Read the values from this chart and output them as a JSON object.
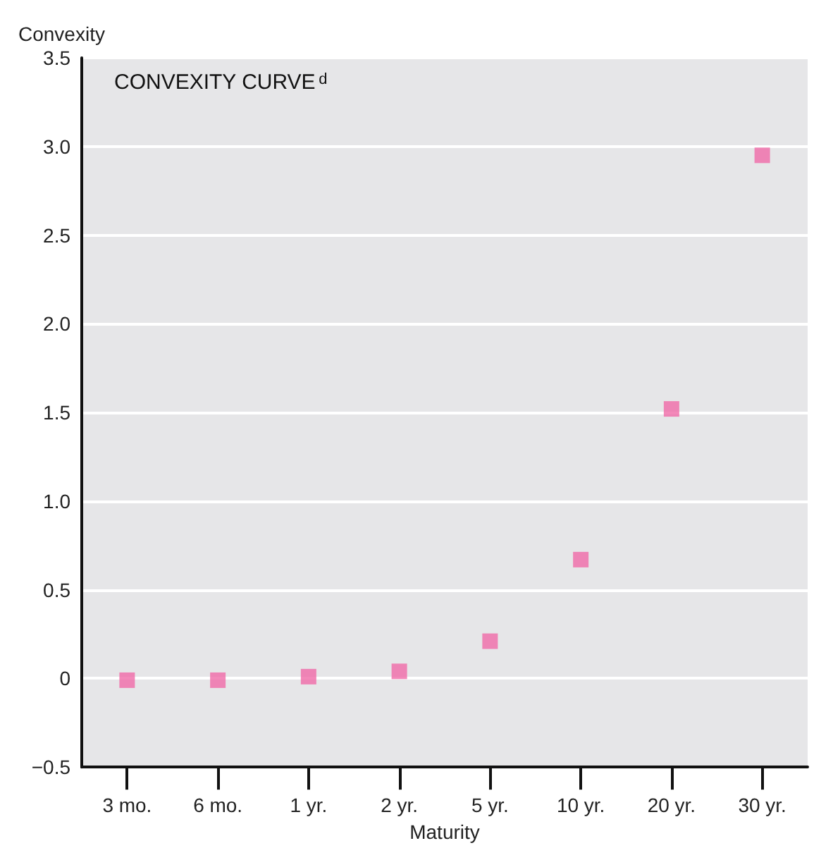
{
  "chart_data": {
    "type": "scatter",
    "title": "CONVEXITY CURVE$^{d}$",
    "xlabel": "Maturity",
    "ylabel": "Convexity",
    "categories": [
      "3 mo.",
      "6 mo.",
      "1 yr.",
      "2 yr.",
      "5 yr.",
      "10 yr.",
      "20 yr.",
      "30 yr."
    ],
    "series": [
      {
        "color": "#f06aa7",
        "values": [
          -0.01,
          -0.01,
          0.01,
          0.04,
          0.21,
          0.67,
          1.52,
          2.95
        ]
      }
    ],
    "ylim": [
      -0.5,
      3.5
    ],
    "yticks": [
      {
        "value": -0.5,
        "label": "−0.5"
      },
      0,
      {
        "value": 0.5,
        "label": "0.5"
      },
      {
        "value": 1,
        "label": "1.0"
      },
      {
        "value": 1.5,
        "label": "1.5"
      },
      {
        "value": 2,
        "label": "2.0"
      },
      {
        "value": 2.5,
        "label": "2.5"
      },
      {
        "value": 3,
        "label": "3.0"
      },
      {
        "value": 3.5,
        "label": "3.5"
      }
    ],
    "grid": "y",
    "marker": "square"
  }
}
